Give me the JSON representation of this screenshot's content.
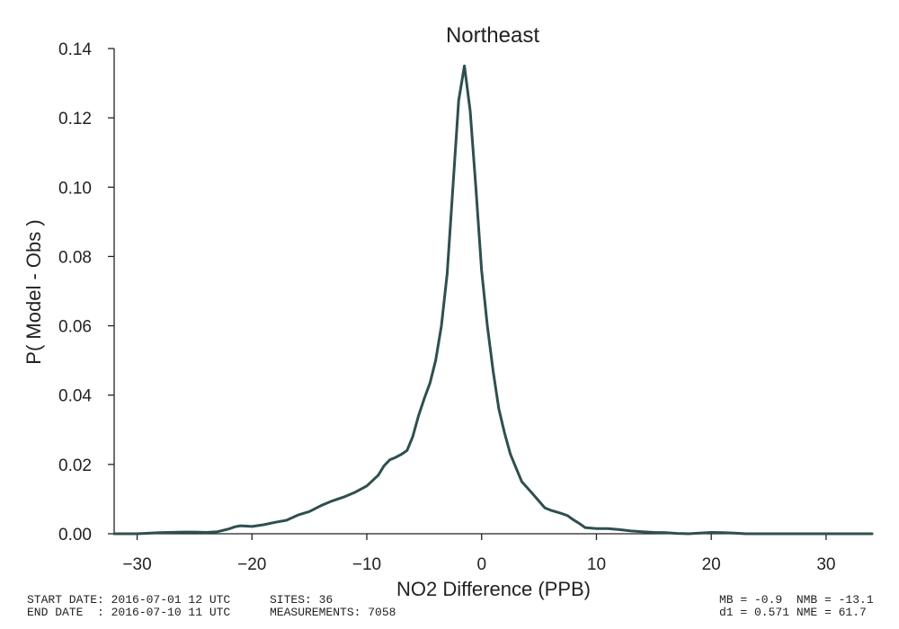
{
  "chart_data": {
    "type": "line",
    "title": "Northeast",
    "xlabel": "NO2 Difference (PPB)",
    "ylabel": "P( Model - Obs )",
    "xlim": [
      -32,
      34
    ],
    "ylim": [
      0,
      0.14
    ],
    "xticks": [
      -30,
      -20,
      -10,
      0,
      10,
      20,
      30
    ],
    "xtick_labels": [
      "−30",
      "−20",
      "−10",
      "0",
      "10",
      "20",
      "30"
    ],
    "yticks": [
      0.0,
      0.02,
      0.04,
      0.06,
      0.08,
      0.1,
      0.12,
      0.14
    ],
    "ytick_labels": [
      "0.00",
      "0.02",
      "0.04",
      "0.06",
      "0.08",
      "0.10",
      "0.12",
      "0.14"
    ],
    "grid": false,
    "color": "#2f4f4f",
    "series": [
      {
        "x": [
          -32,
          -30,
          -28,
          -26,
          -25,
          -24,
          -23,
          -22,
          -21.5,
          -21,
          -20.5,
          -20,
          -19,
          -18,
          -17,
          -16,
          -15,
          -14,
          -13,
          -12,
          -11,
          -10,
          -9,
          -8.5,
          -8,
          -7.5,
          -7,
          -6.5,
          -6,
          -5.5,
          -5,
          -4.5,
          -4,
          -3.5,
          -3,
          -2.5,
          -2,
          -1.5,
          -1,
          -0.5,
          0,
          0.5,
          1,
          1.5,
          2,
          2.5,
          3,
          3.5,
          4,
          4.5,
          5,
          5.5,
          6,
          6.5,
          7,
          7.5,
          8,
          8.5,
          9,
          10,
          11,
          12,
          13,
          14,
          15,
          16,
          17,
          18,
          19,
          20,
          21,
          22,
          23,
          24,
          25,
          26,
          27,
          28,
          29,
          30,
          32,
          34
        ],
        "y": [
          0.0,
          0.0,
          0.0003,
          0.0005,
          0.0005,
          0.0004,
          0.0006,
          0.0014,
          0.002,
          0.0023,
          0.0022,
          0.0021,
          0.0026,
          0.0033,
          0.0039,
          0.0054,
          0.0064,
          0.0081,
          0.0095,
          0.0106,
          0.012,
          0.0138,
          0.0169,
          0.0196,
          0.0213,
          0.022,
          0.0229,
          0.024,
          0.028,
          0.034,
          0.039,
          0.0435,
          0.05,
          0.06,
          0.075,
          0.1,
          0.125,
          0.135,
          0.122,
          0.1,
          0.076,
          0.06,
          0.047,
          0.036,
          0.029,
          0.023,
          0.019,
          0.015,
          0.0132,
          0.0113,
          0.0094,
          0.0075,
          0.0068,
          0.0063,
          0.0058,
          0.0052,
          0.004,
          0.003,
          0.0018,
          0.0015,
          0.0015,
          0.0012,
          0.0008,
          0.0006,
          0.0004,
          0.0003,
          0.0001,
          0.0,
          0.0002,
          0.0004,
          0.0003,
          0.0002,
          0.0,
          0.0,
          0.0,
          0.0,
          0.0,
          0.0,
          0.0,
          0.0,
          0.0,
          0.0
        ]
      }
    ]
  },
  "footer": {
    "start_date": "START DATE: 2016-07-01 12 UTC",
    "end_date": "END DATE  : 2016-07-10 11 UTC",
    "sites": "SITES: 36",
    "measurements": "MEASUREMENTS: 7058",
    "stats_line1": "MB = -0.9  NMB = -13.1",
    "stats_line2": "d1 = 0.571 NME = 61.7"
  }
}
